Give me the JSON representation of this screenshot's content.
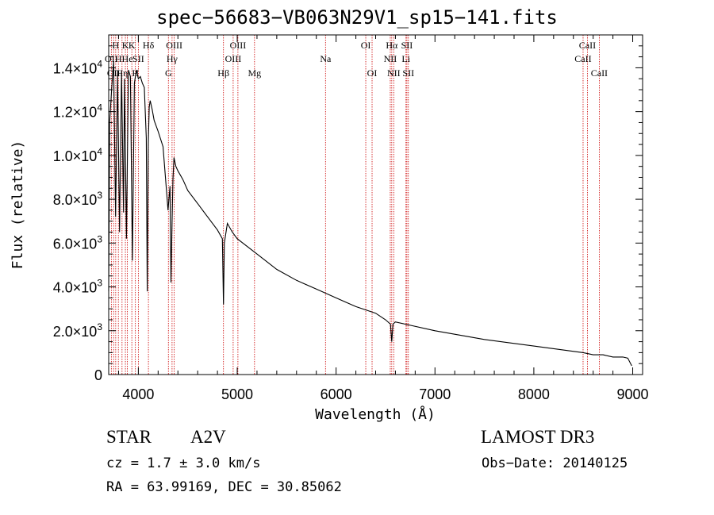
{
  "chart_data": {
    "type": "line",
    "title": "spec−56683−VB063N29V1_sp15−141.fits",
    "xlabel": "Wavelength (Å)",
    "ylabel": "Flux (relative)",
    "xlim": [
      3700,
      9100
    ],
    "ylim": [
      0,
      15500
    ],
    "x_ticks": [
      {
        "value": 4000,
        "label": "4000"
      },
      {
        "value": 5000,
        "label": "5000"
      },
      {
        "value": 6000,
        "label": "6000"
      },
      {
        "value": 7000,
        "label": "7000"
      },
      {
        "value": 8000,
        "label": "8000"
      },
      {
        "value": 9000,
        "label": "9000"
      }
    ],
    "y_ticks": [
      {
        "value": 0,
        "mant": "0",
        "exp": ""
      },
      {
        "value": 2000,
        "mant": "2.0×10",
        "exp": "3"
      },
      {
        "value": 4000,
        "mant": "4.0×10",
        "exp": "3"
      },
      {
        "value": 6000,
        "mant": "6.0×10",
        "exp": "3"
      },
      {
        "value": 8000,
        "mant": "8.0×10",
        "exp": "3"
      },
      {
        "value": 10000,
        "mant": "1.0×10",
        "exp": "4"
      },
      {
        "value": 12000,
        "mant": "1.2×10",
        "exp": "4"
      },
      {
        "value": 14000,
        "mant": "1.4×10",
        "exp": "4"
      }
    ],
    "line_color": "#cc0000",
    "spectrum_color": "#000000",
    "spectrum": {
      "x": [
        3700,
        3710,
        3730,
        3750,
        3770,
        3790,
        3810,
        3830,
        3850,
        3860,
        3880,
        3900,
        3920,
        3940,
        3960,
        3980,
        4000,
        4020,
        4040,
        4060,
        4080,
        4090,
        4100,
        4110,
        4120,
        4140,
        4160,
        4200,
        4250,
        4300,
        4320,
        4330,
        4340,
        4350,
        4360,
        4380,
        4400,
        4450,
        4500,
        4600,
        4700,
        4800,
        4850,
        4861,
        4870,
        4900,
        4950,
        5000,
        5200,
        5400,
        5600,
        5800,
        6000,
        6200,
        6400,
        6500,
        6550,
        6563,
        6575,
        6600,
        6700,
        7000,
        7500,
        8000,
        8500,
        8600,
        8700,
        8800,
        8900,
        8950,
        8990
      ],
      "y": [
        3800,
        11500,
        13000,
        14300,
        7200,
        13700,
        6500,
        13800,
        7400,
        13500,
        6200,
        13900,
        13600,
        5200,
        13300,
        13900,
        13500,
        13600,
        13300,
        13100,
        10800,
        3800,
        10500,
        12200,
        12500,
        12100,
        11600,
        11100,
        10400,
        7500,
        8600,
        4200,
        6800,
        8900,
        9900,
        9500,
        9300,
        8900,
        8400,
        7800,
        7200,
        6600,
        6200,
        3200,
        6000,
        6900,
        6500,
        6200,
        5500,
        4800,
        4300,
        3900,
        3500,
        3100,
        2800,
        2500,
        2300,
        1500,
        2300,
        2400,
        2300,
        2000,
        1600,
        1300,
        1000,
        900,
        900,
        800,
        800,
        750,
        400
      ]
    },
    "lines": [
      {
        "wave": 3727,
        "label": "OII",
        "row": 1
      },
      {
        "wave": 3750,
        "label": "OII",
        "row": 2
      },
      {
        "wave": 3771,
        "label": "H",
        "row": 0
      },
      {
        "wave": 3798,
        "label": "H",
        "row": 1
      },
      {
        "wave": 3835,
        "label": "Hη",
        "row": 2
      },
      {
        "wave": 3869,
        "label": "K",
        "row": 0
      },
      {
        "wave": 3889,
        "label": "He",
        "row": 1
      },
      {
        "wave": 3934,
        "label": "K",
        "row": 0
      },
      {
        "wave": 3970,
        "label": "H",
        "row": 2
      },
      {
        "wave": 4000,
        "label": "SII",
        "row": 1
      },
      {
        "wave": 4102,
        "label": "Hδ",
        "row": 0
      },
      {
        "wave": 4304,
        "label": "G",
        "row": 2
      },
      {
        "wave": 4341,
        "label": "Hγ",
        "row": 1
      },
      {
        "wave": 4363,
        "label": "OIII",
        "row": 0
      },
      {
        "wave": 4861,
        "label": "Hβ",
        "row": 2
      },
      {
        "wave": 4959,
        "label": "OIII",
        "row": 1
      },
      {
        "wave": 5007,
        "label": "OIII",
        "row": 0
      },
      {
        "wave": 5175,
        "label": "Mg",
        "row": 2
      },
      {
        "wave": 5893,
        "label": "Na",
        "row": 1
      },
      {
        "wave": 6300,
        "label": "OI",
        "row": 0
      },
      {
        "wave": 6364,
        "label": "OI",
        "row": 2
      },
      {
        "wave": 6548,
        "label": "NII",
        "row": 1
      },
      {
        "wave": 6563,
        "label": "Hα",
        "row": 0
      },
      {
        "wave": 6583,
        "label": "NII",
        "row": 2
      },
      {
        "wave": 6707,
        "label": "Li",
        "row": 1
      },
      {
        "wave": 6716,
        "label": "SII",
        "row": 0
      },
      {
        "wave": 6731,
        "label": "SII",
        "row": 2
      },
      {
        "wave": 8498,
        "label": "CaII",
        "row": 1
      },
      {
        "wave": 8542,
        "label": "CaII",
        "row": 0
      },
      {
        "wave": 8662,
        "label": "CaII",
        "row": 2
      }
    ]
  },
  "info": {
    "class": "STAR",
    "subclass": "A2V",
    "survey": "LAMOST DR3",
    "cz": "cz = 1.7 ± 3.0 km/s",
    "obs_date": "Obs−Date: 20140125",
    "radec": "RA =  63.99169, DEC =  30.85062"
  }
}
